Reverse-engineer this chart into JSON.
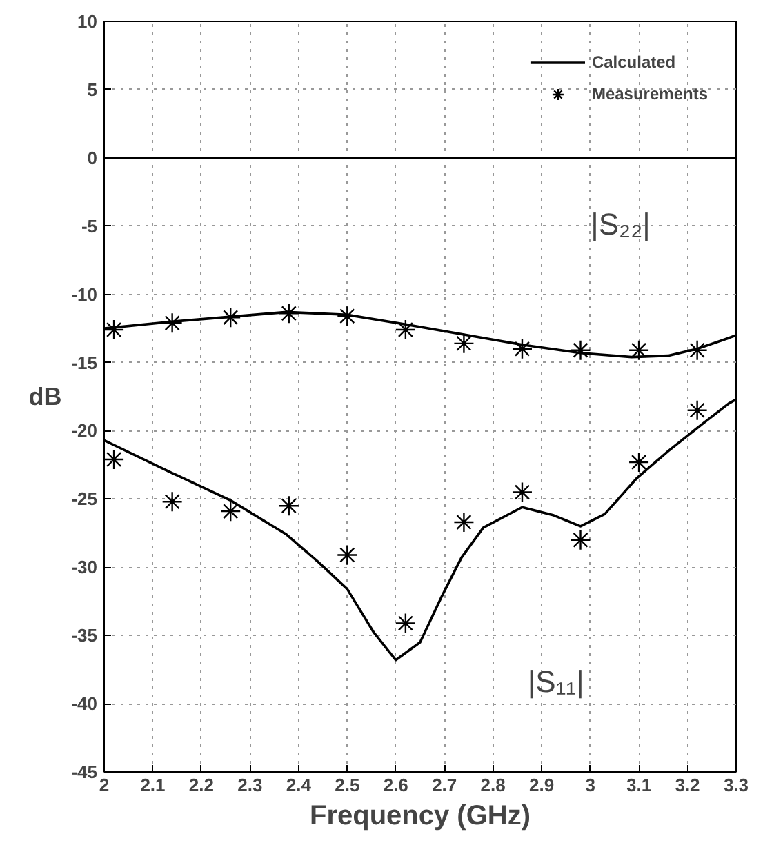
{
  "chart_data": {
    "type": "line",
    "xlabel": "Frequency (GHz)",
    "ylabel": "dB",
    "xlim": [
      2,
      3.3
    ],
    "xticks": [
      2,
      2.1,
      2.2,
      2.3,
      2.4,
      2.5,
      2.6,
      2.7,
      2.8,
      2.9,
      3,
      3.1,
      3.2,
      3.3
    ],
    "ylim": [
      -45,
      10
    ],
    "yticks": [
      -45,
      -40,
      -35,
      -30,
      -25,
      -20,
      -15,
      -10,
      -5,
      0,
      5,
      10
    ],
    "grid": true,
    "legend": "top right",
    "line_style": "solid",
    "ref_lines": [
      {
        "axis": "y",
        "value": 0,
        "color": "#000000",
        "line_style": "solid"
      }
    ],
    "annotations": [
      "|S₂₂|",
      "|S₁₁|"
    ],
    "series": [
      {
        "name": "Calculated",
        "color": "#000000",
        "marker": "none",
        "x": [
          2.0,
          2.14,
          2.375,
          2.5,
          2.62,
          2.86,
          2.98,
          3.085,
          3.16,
          3.22,
          3.285,
          3.3
        ],
        "values": [
          -12.5,
          -12.0,
          -11.3,
          -11.5,
          -12.2,
          -13.7,
          -14.3,
          -14.6,
          -14.5,
          -14.0,
          -13.2,
          -13.0
        ]
      },
      {
        "name": "Measurements",
        "type": "scatter",
        "color": "#000000",
        "marker": "cross",
        "x": [
          2.02,
          2.14,
          2.26,
          2.38,
          2.5,
          2.62,
          2.74,
          2.86,
          2.98,
          3.1,
          3.22
        ],
        "values": [
          -12.6,
          -12.1,
          -11.7,
          -11.4,
          -11.6,
          -12.6,
          -13.6,
          -14.0,
          -14.1,
          -14.1,
          -14.1
        ]
      },
      {
        "color": "#000000",
        "marker": "none",
        "x": [
          2.0,
          2.14,
          2.26,
          2.375,
          2.44,
          2.5,
          2.555,
          2.6,
          2.65,
          2.695,
          2.735,
          2.78,
          2.86,
          2.925,
          2.98,
          3.03,
          3.095,
          3.16,
          3.22,
          3.285,
          3.3
        ],
        "values": [
          -20.7,
          -23.1,
          -25.1,
          -27.6,
          -29.6,
          -31.6,
          -34.8,
          -36.8,
          -35.5,
          -32.1,
          -29.3,
          -27.1,
          -25.6,
          -26.2,
          -27.0,
          -26.1,
          -23.5,
          -21.5,
          -19.8,
          -18.0,
          -17.7
        ]
      },
      {
        "type": "scatter",
        "color": "#000000",
        "marker": "cross",
        "x": [
          2.02,
          2.14,
          2.26,
          2.38,
          2.5,
          2.62,
          2.74,
          2.86,
          2.98,
          3.1,
          3.22
        ],
        "values": [
          -22.1,
          -25.2,
          -25.9,
          -25.5,
          -29.1,
          -34.1,
          -26.7,
          -24.5,
          -28.0,
          -22.3,
          -18.5
        ]
      }
    ]
  }
}
